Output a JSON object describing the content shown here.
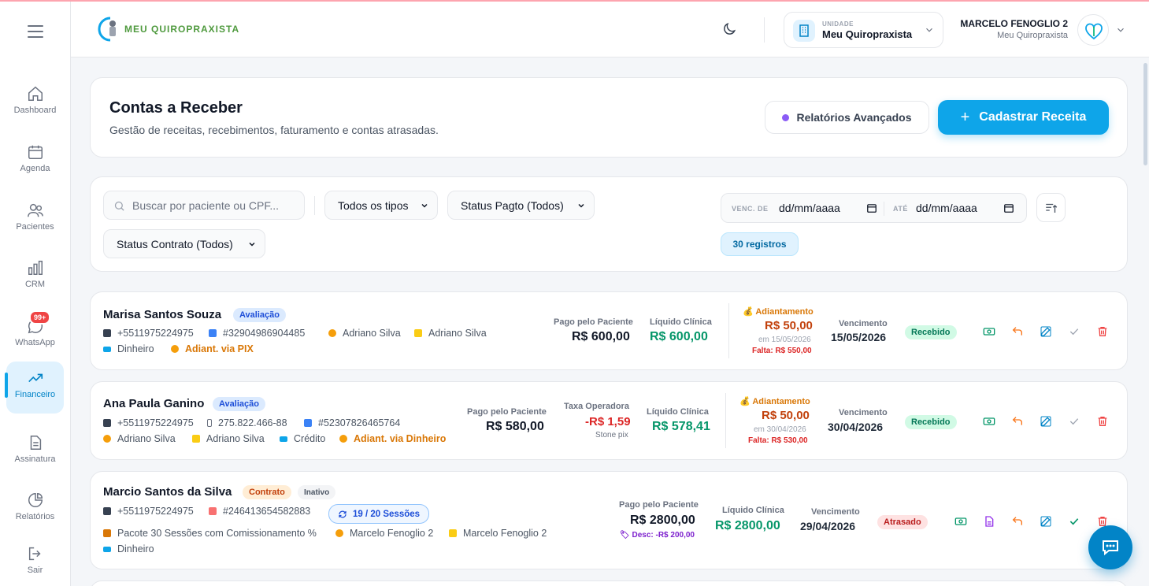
{
  "sidebar": {
    "badge": "99+",
    "items": [
      {
        "label": "Dashboard",
        "icon": "home-icon"
      },
      {
        "label": "Agenda",
        "icon": "calendar-icon"
      },
      {
        "label": "Pacientes",
        "icon": "users-icon"
      },
      {
        "label": "CRM",
        "icon": "bar-chart-icon"
      },
      {
        "label": "WhatsApp",
        "icon": "chat-icon"
      },
      {
        "label": "Financeiro",
        "icon": "trending-up-icon",
        "active": true
      },
      {
        "label": "Assinatura",
        "icon": "document-icon"
      },
      {
        "label": "Relatórios",
        "icon": "pie-chart-icon"
      },
      {
        "label": "Sair",
        "icon": "logout-icon"
      }
    ]
  },
  "header": {
    "logo_text": "MEU QUIROPRAXISTA",
    "unit_label": "UNIDADE",
    "unit_name": "Meu Quiropraxista",
    "user_name": "MARCELO FENOGLIO 2",
    "user_sub": "Meu Quiropraxista"
  },
  "page": {
    "title": "Contas a Receber",
    "subtitle": "Gestão de receitas, recebimentos, faturamento e contas atrasadas.",
    "btn_reports": "Relatórios Avançados",
    "btn_create": "Cadastrar Receita"
  },
  "filters": {
    "search_placeholder": "Buscar por paciente ou CPF...",
    "type": "Todos os tipos",
    "pay_status": "Status Pagto (Todos)",
    "contract_status": "Status Contrato (Todos)",
    "from_label": "VENC. DE",
    "from_value": "dd/mm/aaaa",
    "to_label": "ATÉ",
    "to_value": "dd/mm/aaaa",
    "count": "30 registros"
  },
  "labels": {
    "paid": "Pago pelo Paciente",
    "net": "Líquido Clínica",
    "fee": "Taxa Operadora",
    "advance": "Adiantamento",
    "due": "Vencimento"
  },
  "rows": [
    {
      "name": "Marisa Santos Souza",
      "tag": "Avaliação",
      "phone": "+5511975224975",
      "code": "#32904986904485",
      "prof": "Adriano Silva",
      "resp": "Adriano Silva",
      "pay": "Dinheiro",
      "adv": "Adiant. via PIX",
      "paid": "R$ 600,00",
      "net": "R$ 600,00",
      "adv_amt": "R$ 50,00",
      "adv_date": "em 15/05/2026",
      "adv_missing": "Falta: R$ 550,00",
      "due": "15/05/2026",
      "status": "Recebido"
    },
    {
      "name": "Ana Paula Ganino",
      "tag": "Avaliação",
      "phone": "+5511975224975",
      "cpf": "275.822.466-88",
      "code": "#52307826465764",
      "prof": "Adriano Silva",
      "resp": "Adriano Silva",
      "pay": "Crédito",
      "adv": "Adiant. via Dinheiro",
      "paid": "R$ 580,00",
      "fee": "-R$ 1,59",
      "fee_src": "Stone pix",
      "net": "R$ 578,41",
      "adv_amt": "R$ 50,00",
      "adv_date": "em 30/04/2026",
      "adv_missing": "Falta: R$ 530,00",
      "due": "30/04/2026",
      "status": "Recebido"
    },
    {
      "name": "Marcio Santos da Silva",
      "tag": "Contrato",
      "tag2": "Inativo",
      "phone": "+5511975224975",
      "code": "#246413654582883",
      "sessions": "19 / 20 Sessões",
      "package": "Pacote 30 Sessões com Comissionamento %",
      "prof": "Marcelo Fenoglio 2",
      "resp": "Marcelo Fenoglio 2",
      "pay": "Dinheiro",
      "paid": "R$ 2800,00",
      "discount": "Desc: -R$ 200,00",
      "net": "R$ 2800,00",
      "due": "29/04/2026",
      "status": "Atrasado"
    }
  ]
}
